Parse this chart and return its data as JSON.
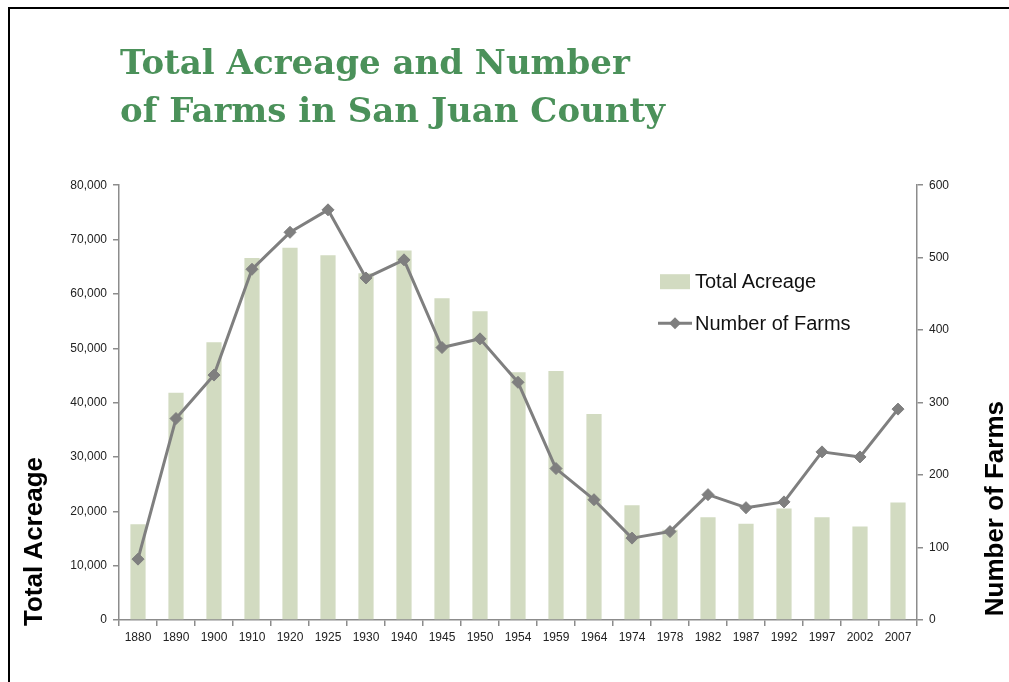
{
  "chart_data": {
    "type": "bar",
    "title": "Total Acreage and Number of Farms in San Juan County",
    "ylabel": "Total Acreage",
    "y2label": "Number of Farms",
    "categories": [
      "1880",
      "1890",
      "1900",
      "1910",
      "1920",
      "1925",
      "1930",
      "1940",
      "1945",
      "1950",
      "1954",
      "1959",
      "1964",
      "1974",
      "1978",
      "1982",
      "1987",
      "1992",
      "1997",
      "2002",
      "2007"
    ],
    "series": [
      {
        "name": "Total Acreage",
        "color": "#d2dbc1",
        "values": [
          17600,
          41800,
          51100,
          66600,
          68500,
          67100,
          63800,
          68000,
          59200,
          56800,
          45600,
          45800,
          37900,
          21100,
          16600,
          18900,
          17700,
          20500,
          18900,
          17200,
          21600
        ]
      },
      {
        "name": "Number of Farms",
        "type": "line",
        "axis": "y2",
        "color": "#7f7f7f",
        "values": [
          84,
          278,
          338,
          484,
          535,
          566,
          472,
          497,
          376,
          388,
          328,
          209,
          166,
          113,
          122,
          173,
          155,
          163,
          232,
          225,
          291
        ]
      }
    ],
    "ylim": [
      0,
      80000
    ],
    "yticks": [
      0,
      {
        "value": 10000,
        "label": "10,000"
      },
      {
        "value": 20000,
        "label": "20,000"
      },
      {
        "value": 30000,
        "label": "30,000"
      },
      {
        "value": 40000,
        "label": "40,000"
      },
      {
        "value": 50000,
        "label": "50,000"
      },
      {
        "value": 60000,
        "label": "60,000"
      },
      {
        "value": 70000,
        "label": "70,000"
      },
      {
        "value": 80000,
        "label": "80,000"
      }
    ],
    "y2lim": [
      0,
      600
    ],
    "y2ticks": [
      0,
      100,
      200,
      300,
      400,
      500,
      600
    ],
    "legend": "top right",
    "marker": "diamond"
  }
}
